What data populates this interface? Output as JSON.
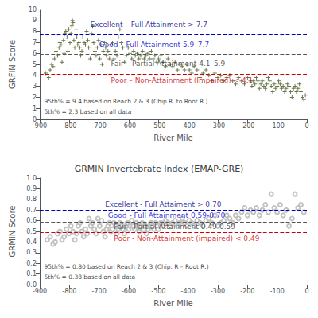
{
  "chart_data": [
    {
      "type": "scatter",
      "xlabel": "River Mile",
      "ylabel": "GRFIN Score",
      "xlim": [
        -900,
        0
      ],
      "ylim": [
        0,
        10
      ],
      "xticks": [
        -900,
        -800,
        -700,
        -600,
        -500,
        -400,
        -300,
        -200,
        -100,
        0
      ],
      "yticks": [
        0,
        1,
        2,
        3,
        4,
        5,
        6,
        7,
        8,
        9,
        10
      ],
      "grid": false,
      "color": "#5A6A3A",
      "marker": "plus",
      "hlines": [
        {
          "y": 7.7,
          "color": "#0000BB",
          "line_style": "dashed"
        },
        {
          "y": 5.9,
          "color": "#555555",
          "line_style": "dashed"
        },
        {
          "y": 4.1,
          "color": "#CC0000",
          "line_style": "dashed"
        }
      ],
      "annotations": [
        {
          "text": "Excellent – Full Attainment > 7.7",
          "x": -730,
          "y": 8.6,
          "color": "#00008B"
        },
        {
          "text": "Good – Full Attainment 5.9–7.7",
          "x": -700,
          "y": 6.8,
          "color": "#0000CC"
        },
        {
          "text": "Fair – Partial Attainment 4.1–5.9",
          "x": -660,
          "y": 5.05,
          "color": "#333333"
        },
        {
          "text": "Poor – Non-Attainment (Impaired) < 4.1",
          "x": -660,
          "y": 3.55,
          "color": "#CC0000"
        }
      ],
      "footnotes": [
        "95th% = 9.4 based on Reach 2 & 3 (Chip R. to Root R.)",
        "5th% = 2.3 based on all data"
      ],
      "x": [
        -880,
        -870,
        -865,
        -860,
        -855,
        -850,
        -845,
        -840,
        -835,
        -832,
        -828,
        -825,
        -820,
        -818,
        -815,
        -812,
        -808,
        -805,
        -802,
        -798,
        -795,
        -792,
        -790,
        -788,
        -785,
        -782,
        -778,
        -775,
        -772,
        -768,
        -765,
        -762,
        -758,
        -755,
        -750,
        -746,
        -742,
        -738,
        -735,
        -730,
        -726,
        -722,
        -718,
        -714,
        -710,
        -706,
        -702,
        -698,
        -694,
        -690,
        -686,
        -682,
        -678,
        -675,
        -670,
        -665,
        -660,
        -655,
        -650,
        -645,
        -640,
        -635,
        -630,
        -625,
        -620,
        -614,
        -608,
        -602,
        -596,
        -590,
        -584,
        -578,
        -572,
        -566,
        -560,
        -554,
        -548,
        -542,
        -536,
        -530,
        -524,
        -518,
        -512,
        -506,
        -500,
        -492,
        -484,
        -476,
        -468,
        -460,
        -452,
        -444,
        -436,
        -428,
        -420,
        -412,
        -404,
        -396,
        -388,
        -380,
        -370,
        -360,
        -350,
        -340,
        -330,
        -320,
        -310,
        -300,
        -290,
        -280,
        -270,
        -260,
        -250,
        -240,
        -230,
        -220,
        -210,
        -200,
        -190,
        -185,
        -180,
        -175,
        -170,
        -165,
        -160,
        -155,
        -150,
        -145,
        -140,
        -135,
        -130,
        -125,
        -120,
        -115,
        -110,
        -105,
        -100,
        -95,
        -90,
        -85,
        -80,
        -75,
        -70,
        -65,
        -60,
        -55,
        -50,
        -45,
        -40,
        -35,
        -30,
        -25,
        -20,
        -15,
        -10,
        -5
      ],
      "values": [
        4.2,
        3.8,
        4.5,
        5.0,
        4.8,
        5.5,
        6.2,
        5.8,
        6.5,
        7.0,
        6.8,
        5.2,
        7.2,
        6.0,
        7.8,
        8.0,
        7.5,
        6.2,
        8.2,
        7.0,
        7.8,
        8.5,
        9.0,
        8.8,
        7.2,
        6.5,
        8.2,
        7.5,
        6.8,
        7.0,
        6.5,
        5.8,
        6.2,
        7.5,
        7.0,
        6.8,
        8.0,
        7.2,
        6.5,
        5.5,
        7.8,
        8.5,
        7.0,
        6.2,
        5.8,
        6.5,
        7.2,
        5.5,
        6.8,
        5.0,
        6.2,
        7.0,
        6.5,
        5.8,
        6.2,
        5.5,
        6.8,
        7.0,
        5.5,
        6.2,
        5.8,
        7.5,
        8.2,
        7.0,
        6.5,
        5.2,
        5.8,
        6.5,
        6.0,
        5.5,
        6.2,
        5.8,
        6.0,
        5.5,
        5.8,
        6.2,
        5.5,
        5.8,
        6.0,
        5.5,
        6.2,
        5.5,
        5.8,
        5.2,
        5.5,
        5.8,
        5.2,
        4.8,
        5.5,
        5.0,
        4.8,
        5.2,
        4.5,
        5.0,
        4.8,
        4.5,
        5.0,
        4.5,
        4.2,
        4.8,
        4.5,
        3.8,
        4.2,
        4.5,
        4.0,
        3.5,
        4.2,
        3.8,
        4.0,
        3.5,
        3.8,
        4.0,
        3.5,
        3.2,
        3.8,
        3.5,
        3.2,
        3.8,
        3.5,
        3.0,
        3.5,
        3.2,
        3.8,
        3.5,
        2.8,
        3.2,
        3.5,
        3.0,
        2.8,
        3.2,
        3.8,
        3.5,
        3.0,
        2.5,
        3.2,
        2.8,
        3.0,
        3.5,
        3.2,
        2.8,
        3.0,
        2.5,
        2.8,
        3.2,
        3.0,
        2.5,
        2.0,
        2.8,
        3.0,
        2.5,
        2.8,
        3.2,
        2.5,
        2.0,
        1.8,
        2.2
      ]
    },
    {
      "type": "scatter",
      "title": "GRMIN Invertebrate Index (EMAP-GRE)",
      "xlabel": "River Mile",
      "ylabel": "GRMIN Score",
      "xlim": [
        -900,
        0
      ],
      "ylim": [
        0.0,
        1.0
      ],
      "xticks": [
        -900,
        -800,
        -700,
        -600,
        -500,
        -400,
        -300,
        -200,
        -100,
        0
      ],
      "yticks": [
        {
          "value": 0,
          "label": "0.0"
        },
        0.1,
        0.2,
        0.3,
        0.4,
        0.5,
        0.6,
        0.7,
        0.8,
        0.9,
        {
          "value": 1,
          "label": "1.0"
        }
      ],
      "grid": false,
      "color": "#BBBBBB",
      "marker": "circle_open",
      "hlines": [
        {
          "y": 0.7,
          "color": "#0000BB",
          "line_style": "dashed"
        },
        {
          "y": 0.59,
          "color": "#555555",
          "line_style": "dashed"
        },
        {
          "y": 0.49,
          "color": "#CC0000",
          "line_style": "dashed"
        }
      ],
      "annotations": [
        {
          "text": "Excellent - Full Attaiment > 0.70",
          "x": -680,
          "y": 0.755,
          "color": "#00008B"
        },
        {
          "text": "Good - Full Attainment 0.59-0.70",
          "x": -670,
          "y": 0.647,
          "color": "#0000CC"
        },
        {
          "text": "Fair - Partial Attainment 0.49-0.59",
          "x": -650,
          "y": 0.545,
          "color": "#333333"
        },
        {
          "text": "Poor - Non-Attainment (impaired) < 0.49",
          "x": -650,
          "y": 0.435,
          "color": "#CC0000"
        }
      ],
      "footnotes": [
        "95th% = 0.80 based on Reach 2 & 3 (Chip. R – Root R.)",
        "5th% = 0.38 based on all data"
      ],
      "x": [
        -875,
        -865,
        -855,
        -848,
        -840,
        -832,
        -825,
        -818,
        -810,
        -802,
        -795,
        -788,
        -782,
        -776,
        -770,
        -764,
        -758,
        -752,
        -746,
        -740,
        -734,
        -728,
        -722,
        -716,
        -710,
        -704,
        -698,
        -692,
        -686,
        -680,
        -675,
        -670,
        -665,
        -660,
        -655,
        -650,
        -645,
        -640,
        -635,
        -630,
        -625,
        -620,
        -615,
        -610,
        -605,
        -600,
        -595,
        -590,
        -585,
        -580,
        -575,
        -570,
        -565,
        -560,
        -555,
        -550,
        -545,
        -540,
        -535,
        -530,
        -525,
        -520,
        -515,
        -510,
        -505,
        -500,
        -492,
        -484,
        -476,
        -468,
        -460,
        -452,
        -444,
        -436,
        -428,
        -420,
        -412,
        -404,
        -396,
        -388,
        -380,
        -370,
        -360,
        -350,
        -340,
        -330,
        -320,
        -310,
        -300,
        -290,
        -280,
        -270,
        -260,
        -250,
        -240,
        -230,
        -220,
        -210,
        -200,
        -190,
        -180,
        -170,
        -160,
        -150,
        -140,
        -130,
        -120,
        -110,
        -100,
        -90,
        -80,
        -70,
        -60,
        -50,
        -40,
        -30,
        -20,
        -10
      ],
      "values": [
        0.42,
        0.45,
        0.38,
        0.4,
        0.48,
        0.5,
        0.42,
        0.45,
        0.52,
        0.48,
        0.55,
        0.5,
        0.42,
        0.48,
        0.55,
        0.58,
        0.5,
        0.45,
        0.52,
        0.48,
        0.62,
        0.55,
        0.58,
        0.52,
        0.48,
        0.62,
        0.55,
        0.6,
        0.5,
        0.45,
        0.52,
        0.55,
        0.58,
        0.5,
        0.52,
        0.58,
        0.55,
        0.48,
        0.52,
        0.58,
        0.55,
        0.52,
        0.48,
        0.55,
        0.58,
        0.52,
        0.55,
        0.6,
        0.55,
        0.52,
        0.58,
        0.55,
        0.5,
        0.55,
        0.58,
        0.52,
        0.55,
        0.48,
        0.52,
        0.55,
        0.58,
        0.55,
        0.52,
        0.58,
        0.55,
        0.52,
        0.58,
        0.55,
        0.6,
        0.58,
        0.55,
        0.58,
        0.6,
        0.55,
        0.58,
        0.62,
        0.58,
        0.55,
        0.6,
        0.58,
        0.55,
        0.6,
        0.58,
        0.55,
        0.6,
        0.62,
        0.58,
        0.65,
        0.55,
        0.58,
        0.6,
        0.65,
        0.62,
        0.58,
        0.65,
        0.62,
        0.68,
        0.72,
        0.65,
        0.7,
        0.68,
        0.72,
        0.65,
        0.7,
        0.75,
        0.68,
        0.85,
        0.72,
        0.68,
        0.75,
        0.65,
        0.7,
        0.55,
        0.62,
        0.85,
        0.72,
        0.75,
        0.68
      ]
    }
  ]
}
